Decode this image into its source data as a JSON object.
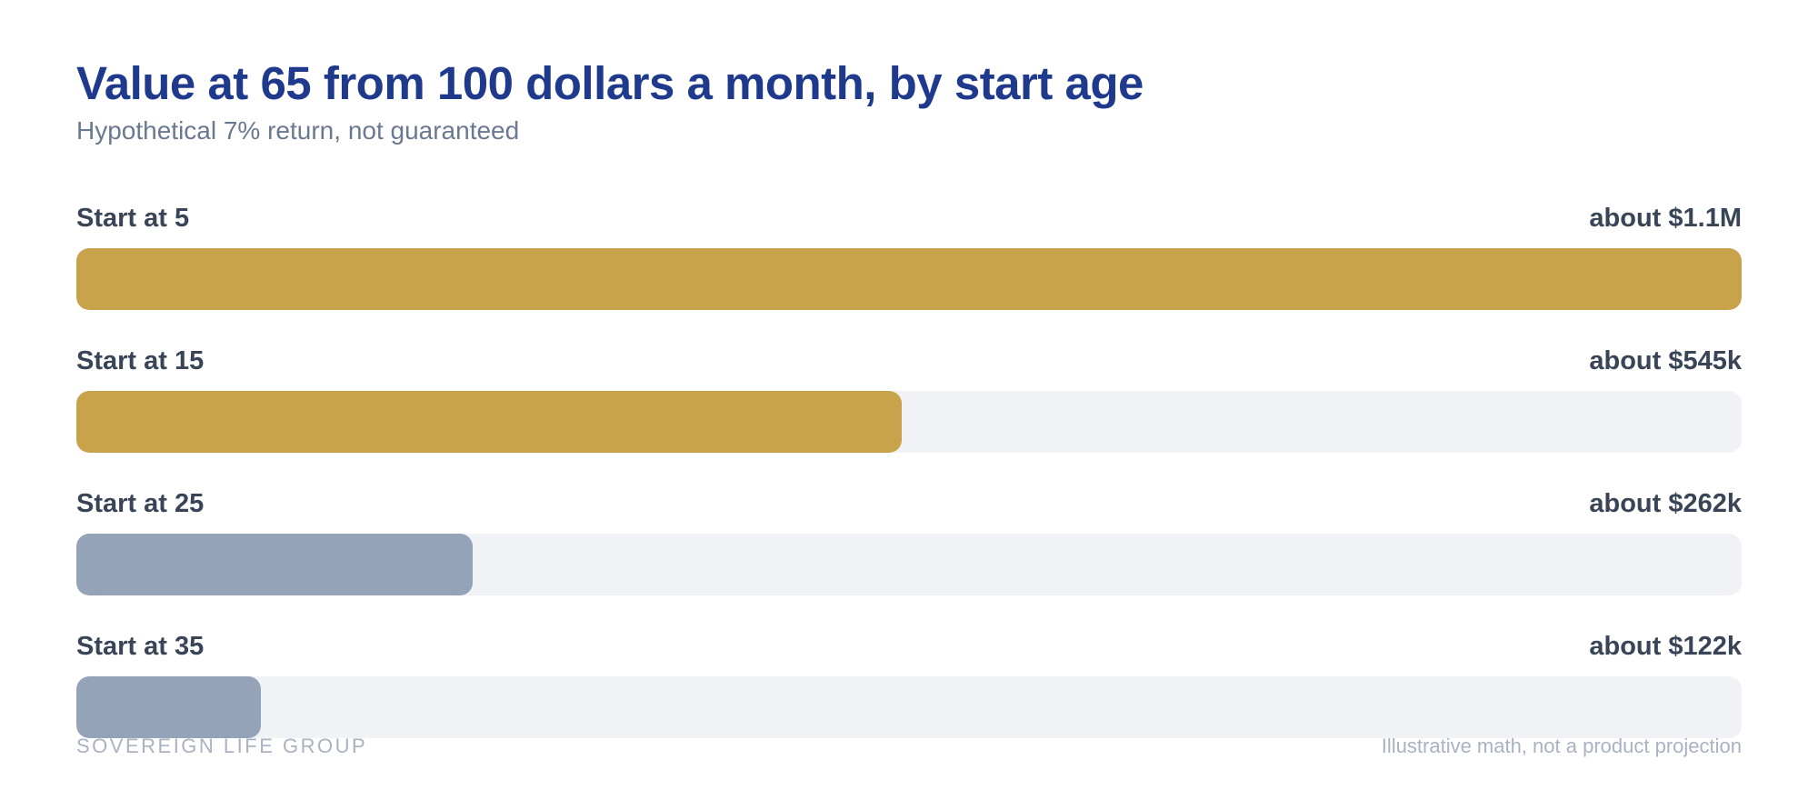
{
  "chart_data": {
    "type": "bar",
    "orientation": "horizontal",
    "title": "Value at 65 from 100 dollars a month, by start age",
    "subtitle": "Hypothetical 7% return, not guaranteed",
    "categories": [
      "Start at 5",
      "Start at 15",
      "Start at 25",
      "Start at 35"
    ],
    "values": [
      1100000,
      545000,
      262000,
      122000
    ],
    "value_labels": [
      "about $1.1M",
      "about $545k",
      "about $262k",
      "about $122k"
    ],
    "xlim": [
      0,
      1100000
    ],
    "grid": false,
    "colors": [
      "#c9a24c",
      "#c9a24c",
      "#95a3b9",
      "#95a3b9"
    ],
    "track_color": "#f1f2f6"
  },
  "footer": {
    "brand": "SOVEREIGN LIFE GROUP",
    "note": "Illustrative math, not a product projection"
  },
  "colors": {
    "title": "#1f3a8c",
    "subtitle": "#6b7891",
    "label": "#3a4457",
    "footer": "#aab2c2"
  }
}
